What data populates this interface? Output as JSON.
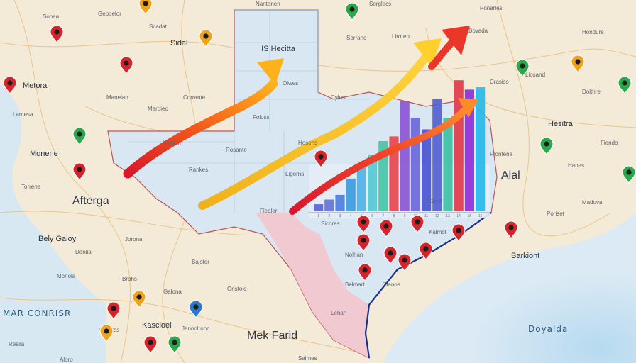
{
  "map": {
    "colors": {
      "land": "#f3ead7",
      "water": "#cfe5f3",
      "state_fill": "#d9e7f3",
      "state_south": "#f4c3c9",
      "coast_line": "#1e2f86",
      "road": "#e3b067"
    },
    "labels": {
      "top_box": "IS Hecitta",
      "metora": "Metora",
      "monene": "Monene",
      "afterga": "Afterga",
      "belly": "Bely Gaioy",
      "sea": "MAR CONRISR",
      "kascloel": "Kascloel",
      "jannolroon": "Jannolroon",
      "meck_farid": "Mek Farid",
      "hesitra": "Hesitra",
      "alal": "Alal",
      "barkiont": "Barkiont",
      "doyalda": "Doyalda",
      "sidal": "Sidal",
      "lehan": "Lehan",
      "cylus": "Cylus",
      "rankes": "Rankes",
      "fiealer": "Fiealer",
      "ligorns": "Ligorns"
    },
    "small_labels": [
      "Sohaa",
      "Gepoelor",
      "Scadat",
      "Nantanen",
      "Sorglecs",
      "Ponarles",
      "Hondure",
      "Serrano",
      "Liroren",
      "Bovada",
      "Liosand",
      "Dolthre",
      "Crasiss",
      "Mardieo",
      "Corrante",
      "Olwes",
      "Hosens",
      "Foloss",
      "Rosante",
      "Vantan",
      "Manelan",
      "Lamesa",
      "Torrene",
      "Denlia",
      "Jorona",
      "Balster",
      "Oristolo",
      "Galona",
      "Brohs",
      "Monola",
      "Dainer",
      "Sicoras",
      "Nolhan",
      "Belmart",
      "Tianos",
      "Kalmot",
      "Poriset",
      "Hanes",
      "Fiendo",
      "Madova",
      "Resila",
      "Aloro",
      "Gruntas",
      "Salmes",
      "Frontena"
    ],
    "pins": [
      {
        "color": "#d6242c",
        "icon": "map-pin-red"
      },
      {
        "color": "#f0a21b",
        "icon": "map-pin-orange"
      },
      {
        "color": "#2aa84a",
        "icon": "map-pin-green"
      },
      {
        "color": "#2a78d0",
        "icon": "map-pin-blue"
      }
    ]
  },
  "chart_data": {
    "type": "bar",
    "categories": [
      "1",
      "2",
      "3",
      "4",
      "5",
      "6",
      "7",
      "8",
      "9",
      "10",
      "11",
      "12",
      "13",
      "14",
      "15",
      "16"
    ],
    "values": [
      3,
      5,
      7,
      14,
      20,
      24,
      30,
      32,
      47,
      40,
      35,
      48,
      40,
      56,
      52,
      53
    ],
    "colors": [
      "#5a63cf",
      "#6674d8",
      "#4d7fdc",
      "#3e9bde",
      "#4fb2e3",
      "#57c8d3",
      "#45c7a7",
      "#e6464e",
      "#8c56d6",
      "#6d68dd",
      "#4a55cf",
      "#5561d3",
      "#3ec0a4",
      "#e33a4b",
      "#8e2fd8",
      "#28b8e8"
    ],
    "trends": [
      {
        "name": "",
        "color": "#f0b21b"
      },
      {
        "name": "",
        "color": "#e9382a"
      },
      {
        "name": "",
        "color": "#ff9c24"
      }
    ],
    "xlabel": "",
    "ylabel": "",
    "ylim": [
      0,
      60
    ]
  }
}
